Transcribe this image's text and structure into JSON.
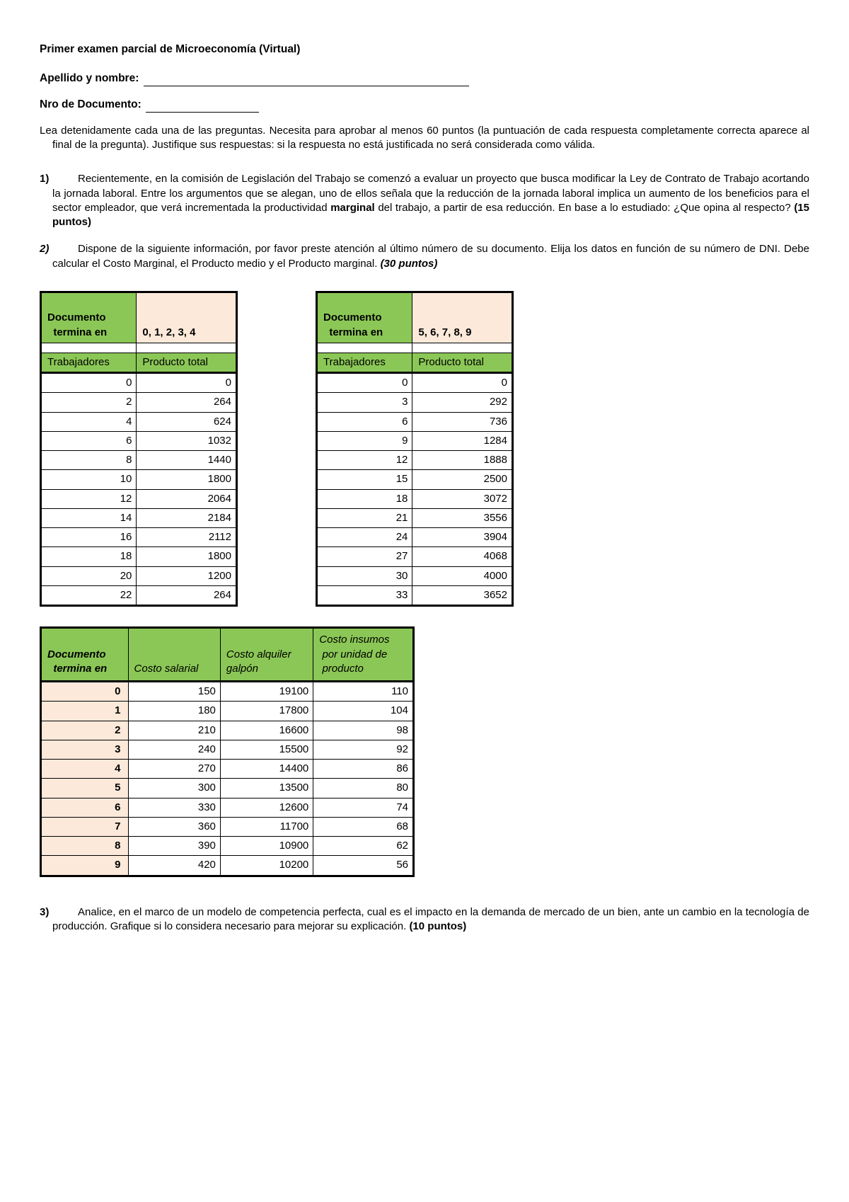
{
  "title": "Primer examen parcial de Microeconomía (Virtual)",
  "fields": {
    "name_label": "Apellido y nombre:",
    "doc_label": "Nro de Documento:"
  },
  "instructions": "Lea detenidamente cada una de las preguntas. Necesita para aprobar al menos 60 puntos (la puntuación de cada respuesta completamente correcta aparece al final de la pregunta). Justifique sus respuestas: si la respuesta no está justificada no será considerada como válida.",
  "q1": {
    "num": "1)",
    "text_a": "Recientemente, en la comisión de Legislación del Trabajo se comenzó a evaluar un proyecto que busca modificar la Ley de Contrato de Trabajo acortando la jornada laboral. Entre los argumentos que se alegan, uno de ellos señala que la reducción de la jornada laboral implica un aumento de los beneficios para el sector empleador, que verá incrementada la productividad ",
    "marginal": "marginal",
    "text_b": " del trabajo, a partir de esa reducción. En base a lo estudiado: ¿Que opina al respecto? ",
    "points": "(15 puntos)"
  },
  "q2": {
    "num": "2)",
    "text": "Dispone de la siguiente información, por favor preste atención al último número de su documento. Elija los datos en función de su número de DNI. Debe calcular el Costo Marginal, el Producto medio y el Producto marginal. ",
    "points": "(30 puntos)"
  },
  "q3": {
    "num": "3)",
    "text": "Analice, en el marco de un modelo de competencia perfecta, cual es el impacto en la demanda de mercado de un bien, ante un cambio en la tecnología de producción. Grafique si lo considera necesario para mejorar su explicación. ",
    "points": "(10 puntos)"
  },
  "tableA": {
    "doc_label_l1": "Documento",
    "doc_label_l2": "termina en",
    "range": "0, 1, 2, 3, 4",
    "col1": "Trabajadores",
    "col2": "Producto total",
    "rows": [
      [
        0,
        0
      ],
      [
        2,
        264
      ],
      [
        4,
        624
      ],
      [
        6,
        1032
      ],
      [
        8,
        1440
      ],
      [
        10,
        1800
      ],
      [
        12,
        2064
      ],
      [
        14,
        2184
      ],
      [
        16,
        2112
      ],
      [
        18,
        1800
      ],
      [
        20,
        1200
      ],
      [
        22,
        264
      ]
    ]
  },
  "tableB": {
    "doc_label_l1": "Documento",
    "doc_label_l2": "termina en",
    "range": "5, 6, 7, 8, 9",
    "col1": "Trabajadores",
    "col2": "Producto total",
    "rows": [
      [
        0,
        0
      ],
      [
        3,
        292
      ],
      [
        6,
        736
      ],
      [
        9,
        1284
      ],
      [
        12,
        1888
      ],
      [
        15,
        2500
      ],
      [
        18,
        3072
      ],
      [
        21,
        3556
      ],
      [
        24,
        3904
      ],
      [
        27,
        4068
      ],
      [
        30,
        4000
      ],
      [
        33,
        3652
      ]
    ]
  },
  "costTable": {
    "h1_l1": "Documento",
    "h1_l2": "termina en",
    "h2": "Costo salarial",
    "h3_l1": "Costo alquiler",
    "h3_l2": "galpón",
    "h4_l1": "Costo insumos",
    "h4_l2": "por unidad de",
    "h4_l3": "producto",
    "rows": [
      [
        0,
        150,
        19100,
        110
      ],
      [
        1,
        180,
        17800,
        104
      ],
      [
        2,
        210,
        16600,
        98
      ],
      [
        3,
        240,
        15500,
        92
      ],
      [
        4,
        270,
        14400,
        86
      ],
      [
        5,
        300,
        13500,
        80
      ],
      [
        6,
        330,
        12600,
        74
      ],
      [
        7,
        360,
        11700,
        68
      ],
      [
        8,
        390,
        10900,
        62
      ],
      [
        9,
        420,
        10200,
        56
      ]
    ]
  },
  "colors": {
    "green": "#8bc756",
    "peach": "#fce9da"
  }
}
